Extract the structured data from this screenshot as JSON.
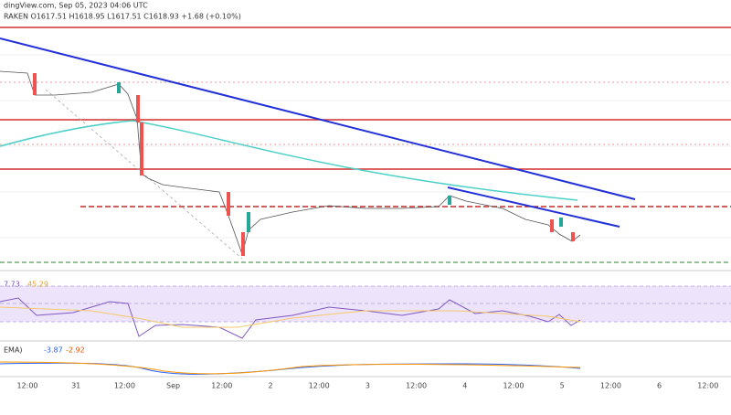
{
  "header": {
    "source": "dingView.com, Sep 05, 2023 04:06 UTC",
    "quote": "RAKEN  O1617.51  H1618.95  L1617.51  C1618.93  +1.68 (+0.10%)"
  },
  "rsi": {
    "labels": [
      "7.73",
      "45.29"
    ]
  },
  "macd": {
    "labels": [
      "EMA)",
      "-3.87",
      "-2.92"
    ]
  },
  "x_axis": {
    "labels": [
      "12:00",
      "31",
      "12:00",
      "Sep",
      "12:00",
      "2",
      "12:00",
      "3",
      "12:00",
      "4",
      "12:00",
      "5",
      "12:00",
      "6",
      "12:00"
    ]
  }
}
